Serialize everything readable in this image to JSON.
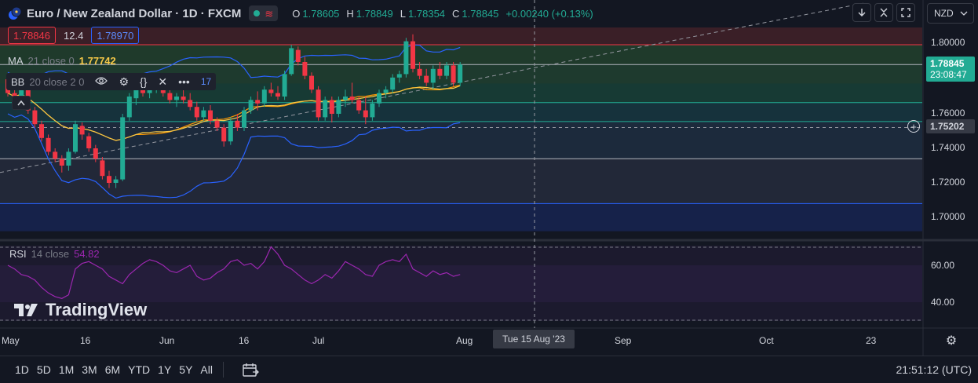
{
  "header": {
    "title": "Euro / New Zealand Dollar · 1D · FXCM",
    "ohlc": {
      "o_label": "O",
      "o": "1.78605",
      "h_label": "H",
      "h": "1.78849",
      "l_label": "L",
      "l": "1.78354",
      "c_label": "C",
      "c": "1.78845",
      "change": "+0.00240 (+0.13%)"
    },
    "bid": "1.78846",
    "spread": "12.4",
    "ask": "1.78970"
  },
  "indicators": {
    "ma": {
      "label": "MA",
      "params": "21 close 0",
      "value": "1.77742"
    },
    "bb": {
      "label": "BB",
      "params": "20 close 2 0",
      "tail": "17"
    },
    "rsi": {
      "label": "RSI",
      "params": "14 close",
      "value": "54.82"
    }
  },
  "toolbar": {
    "currency": "NZD"
  },
  "price_axis": {
    "ticks": [
      "1.80000",
      "1.76000",
      "1.74000",
      "1.72000",
      "1.70000"
    ],
    "last_price": "1.78845",
    "countdown": "23:08:47",
    "crosshair_price": "1.75202"
  },
  "rsi_axis": {
    "ticks": [
      "60.00",
      "40.00"
    ]
  },
  "time_axis": {
    "labels": [
      "May",
      "16",
      "Jun",
      "16",
      "Jul",
      "Aug",
      "Sep",
      "Oct",
      "23"
    ],
    "crosshair_date": "Tue 15 Aug '23"
  },
  "watermark": "TradingView",
  "ranges": [
    "1D",
    "5D",
    "1M",
    "3M",
    "6M",
    "YTD",
    "1Y",
    "5Y",
    "All"
  ],
  "clock": "21:51:12 (UTC)",
  "colors": {
    "up": "#22ab94",
    "down": "#f23645",
    "bb": "#2962ff",
    "ma": "#f7c948",
    "rsi": "#9c27b0"
  },
  "chart_data": {
    "type": "candlestick",
    "title": "Euro / New Zealand Dollar · 1D · FXCM",
    "ylim": [
      1.69,
      1.81
    ],
    "candles": [
      {
        "o": 1.78,
        "h": 1.783,
        "l": 1.77,
        "c": 1.772
      },
      {
        "o": 1.772,
        "h": 1.776,
        "l": 1.766,
        "c": 1.768
      },
      {
        "o": 1.77,
        "h": 1.776,
        "l": 1.768,
        "c": 1.774
      },
      {
        "o": 1.774,
        "h": 1.777,
        "l": 1.76,
        "c": 1.762
      },
      {
        "o": 1.762,
        "h": 1.764,
        "l": 1.752,
        "c": 1.754
      },
      {
        "o": 1.754,
        "h": 1.756,
        "l": 1.744,
        "c": 1.746
      },
      {
        "o": 1.746,
        "h": 1.748,
        "l": 1.736,
        "c": 1.738
      },
      {
        "o": 1.738,
        "h": 1.74,
        "l": 1.732,
        "c": 1.734
      },
      {
        "o": 1.734,
        "h": 1.736,
        "l": 1.726,
        "c": 1.73
      },
      {
        "o": 1.73,
        "h": 1.74,
        "l": 1.727,
        "c": 1.738
      },
      {
        "o": 1.738,
        "h": 1.756,
        "l": 1.737,
        "c": 1.754
      },
      {
        "o": 1.753,
        "h": 1.755,
        "l": 1.745,
        "c": 1.748
      },
      {
        "o": 1.747,
        "h": 1.749,
        "l": 1.738,
        "c": 1.74
      },
      {
        "o": 1.74,
        "h": 1.742,
        "l": 1.732,
        "c": 1.734
      },
      {
        "o": 1.733,
        "h": 1.735,
        "l": 1.722,
        "c": 1.724
      },
      {
        "o": 1.724,
        "h": 1.727,
        "l": 1.717,
        "c": 1.72
      },
      {
        "o": 1.72,
        "h": 1.724,
        "l": 1.717,
        "c": 1.722
      },
      {
        "o": 1.722,
        "h": 1.76,
        "l": 1.721,
        "c": 1.758
      },
      {
        "o": 1.758,
        "h": 1.772,
        "l": 1.756,
        "c": 1.77
      },
      {
        "o": 1.769,
        "h": 1.776,
        "l": 1.765,
        "c": 1.774
      },
      {
        "o": 1.774,
        "h": 1.779,
        "l": 1.77,
        "c": 1.772
      },
      {
        "o": 1.772,
        "h": 1.776,
        "l": 1.769,
        "c": 1.774
      },
      {
        "o": 1.774,
        "h": 1.778,
        "l": 1.772,
        "c": 1.776
      },
      {
        "o": 1.776,
        "h": 1.78,
        "l": 1.77,
        "c": 1.772
      },
      {
        "o": 1.772,
        "h": 1.774,
        "l": 1.766,
        "c": 1.768
      },
      {
        "o": 1.768,
        "h": 1.772,
        "l": 1.764,
        "c": 1.77
      },
      {
        "o": 1.77,
        "h": 1.774,
        "l": 1.766,
        "c": 1.768
      },
      {
        "o": 1.768,
        "h": 1.772,
        "l": 1.762,
        "c": 1.764
      },
      {
        "o": 1.764,
        "h": 1.767,
        "l": 1.756,
        "c": 1.758
      },
      {
        "o": 1.758,
        "h": 1.764,
        "l": 1.756,
        "c": 1.762
      },
      {
        "o": 1.762,
        "h": 1.765,
        "l": 1.754,
        "c": 1.756
      },
      {
        "o": 1.756,
        "h": 1.758,
        "l": 1.75,
        "c": 1.752
      },
      {
        "o": 1.752,
        "h": 1.754,
        "l": 1.741,
        "c": 1.744
      },
      {
        "o": 1.744,
        "h": 1.758,
        "l": 1.742,
        "c": 1.756
      },
      {
        "o": 1.756,
        "h": 1.76,
        "l": 1.75,
        "c": 1.752
      },
      {
        "o": 1.752,
        "h": 1.764,
        "l": 1.75,
        "c": 1.762
      },
      {
        "o": 1.762,
        "h": 1.77,
        "l": 1.76,
        "c": 1.768
      },
      {
        "o": 1.768,
        "h": 1.773,
        "l": 1.762,
        "c": 1.766
      },
      {
        "o": 1.766,
        "h": 1.776,
        "l": 1.764,
        "c": 1.774
      },
      {
        "o": 1.774,
        "h": 1.778,
        "l": 1.77,
        "c": 1.772
      },
      {
        "o": 1.772,
        "h": 1.776,
        "l": 1.768,
        "c": 1.77
      },
      {
        "o": 1.77,
        "h": 1.785,
        "l": 1.768,
        "c": 1.783
      },
      {
        "o": 1.783,
        "h": 1.8,
        "l": 1.782,
        "c": 1.798
      },
      {
        "o": 1.797,
        "h": 1.799,
        "l": 1.788,
        "c": 1.79
      },
      {
        "o": 1.79,
        "h": 1.793,
        "l": 1.78,
        "c": 1.782
      },
      {
        "o": 1.782,
        "h": 1.784,
        "l": 1.772,
        "c": 1.774
      },
      {
        "o": 1.774,
        "h": 1.776,
        "l": 1.756,
        "c": 1.758
      },
      {
        "o": 1.758,
        "h": 1.77,
        "l": 1.756,
        "c": 1.768
      },
      {
        "o": 1.768,
        "h": 1.77,
        "l": 1.755,
        "c": 1.76
      },
      {
        "o": 1.76,
        "h": 1.77,
        "l": 1.758,
        "c": 1.768
      },
      {
        "o": 1.768,
        "h": 1.774,
        "l": 1.764,
        "c": 1.77
      },
      {
        "o": 1.77,
        "h": 1.778,
        "l": 1.766,
        "c": 1.768
      },
      {
        "o": 1.768,
        "h": 1.77,
        "l": 1.76,
        "c": 1.762
      },
      {
        "o": 1.762,
        "h": 1.77,
        "l": 1.754,
        "c": 1.758
      },
      {
        "o": 1.758,
        "h": 1.768,
        "l": 1.756,
        "c": 1.766
      },
      {
        "o": 1.766,
        "h": 1.774,
        "l": 1.764,
        "c": 1.772
      },
      {
        "o": 1.772,
        "h": 1.776,
        "l": 1.769,
        "c": 1.774
      },
      {
        "o": 1.774,
        "h": 1.783,
        "l": 1.772,
        "c": 1.781
      },
      {
        "o": 1.781,
        "h": 1.785,
        "l": 1.778,
        "c": 1.783
      },
      {
        "o": 1.783,
        "h": 1.804,
        "l": 1.781,
        "c": 1.802
      },
      {
        "o": 1.802,
        "h": 1.806,
        "l": 1.784,
        "c": 1.786
      },
      {
        "o": 1.786,
        "h": 1.79,
        "l": 1.78,
        "c": 1.782
      },
      {
        "o": 1.782,
        "h": 1.786,
        "l": 1.776,
        "c": 1.778
      },
      {
        "o": 1.778,
        "h": 1.788,
        "l": 1.774,
        "c": 1.786
      },
      {
        "o": 1.786,
        "h": 1.79,
        "l": 1.78,
        "c": 1.782
      },
      {
        "o": 1.782,
        "h": 1.79,
        "l": 1.78,
        "c": 1.788
      },
      {
        "o": 1.788,
        "h": 1.79,
        "l": 1.776,
        "c": 1.778
      },
      {
        "o": 1.778,
        "h": 1.79,
        "l": 1.776,
        "c": 1.7885
      }
    ],
    "rsi": [
      60,
      58,
      55,
      54,
      52,
      48,
      45,
      43,
      42,
      44,
      58,
      61,
      62,
      60,
      58,
      54,
      52,
      50,
      55,
      58,
      61,
      63,
      62,
      60,
      57,
      56,
      58,
      60,
      54,
      52,
      53,
      56,
      58,
      62,
      63,
      60,
      61,
      58,
      62,
      70,
      66,
      60,
      58,
      55,
      52,
      50,
      52,
      55,
      53,
      57,
      62,
      60,
      58,
      55,
      54,
      60,
      62,
      63,
      62,
      66,
      58,
      56,
      54,
      57,
      55,
      56,
      54,
      55
    ],
    "y_ticks": [
      1.8,
      1.76,
      1.74,
      1.72,
      1.7
    ],
    "rsi_ticks": [
      60,
      40
    ]
  }
}
